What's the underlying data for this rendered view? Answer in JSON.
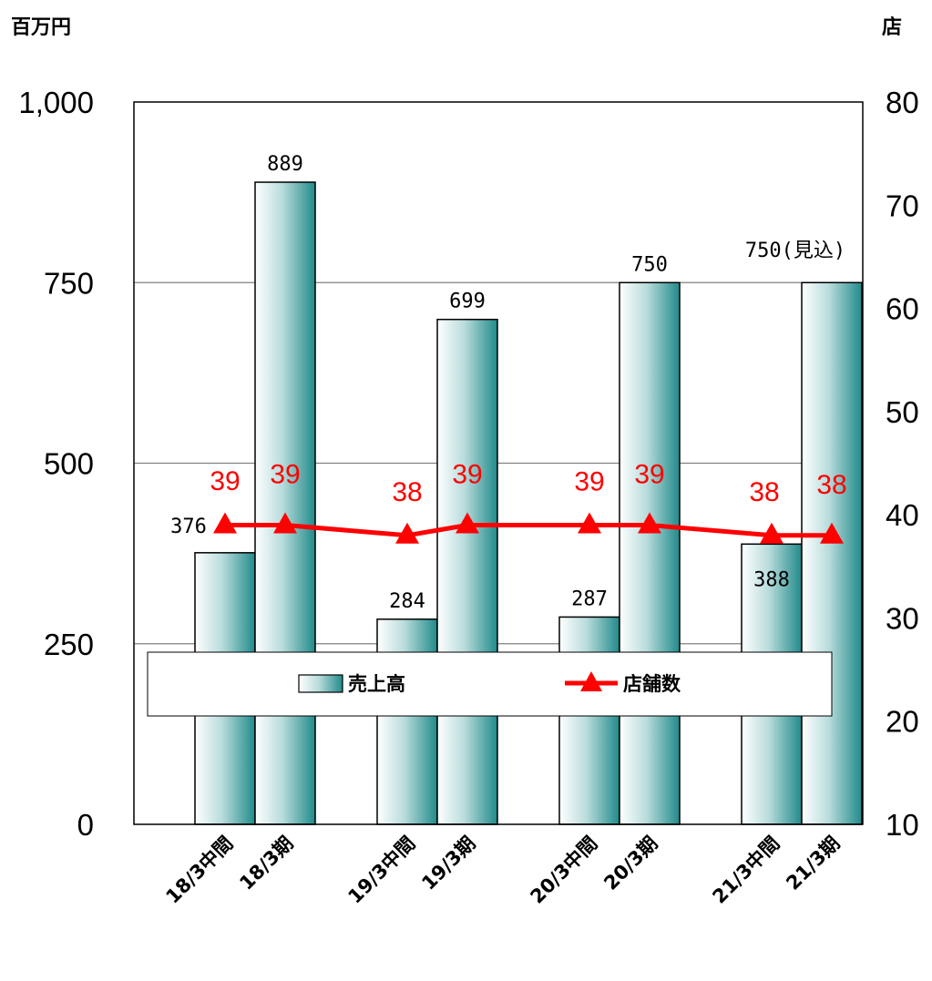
{
  "chart_data": {
    "type": "bar",
    "units": {
      "left": "百万円",
      "right": "店"
    },
    "categories": [
      "18/3中間",
      "18/3期",
      "19/3中間",
      "19/3期",
      "20/3中間",
      "20/3期",
      "21/3中間",
      "21/3期"
    ],
    "series": [
      {
        "name": "売上高",
        "type": "bar",
        "axis": "left",
        "values": [
          376,
          889,
          284,
          699,
          287,
          750,
          388,
          750
        ],
        "labels": [
          "376",
          "889",
          "284",
          "699",
          "287",
          "750",
          "388",
          "750(見込)"
        ]
      },
      {
        "name": "店舗数",
        "type": "line",
        "axis": "right",
        "values": [
          39,
          39,
          38,
          39,
          39,
          39,
          38,
          38
        ],
        "labels": [
          "39",
          "39",
          "38",
          "39",
          "39",
          "39",
          "38",
          "38"
        ]
      }
    ],
    "y_left": {
      "min": 0,
      "max": 1000,
      "ticks": [
        "0",
        "250",
        "500",
        "750",
        "1,000"
      ]
    },
    "y_right": {
      "min": 10,
      "max": 80,
      "ticks": [
        "10",
        "20",
        "30",
        "40",
        "50",
        "60",
        "70",
        "80"
      ]
    },
    "grid": true,
    "legend_position": "bottom",
    "colors": {
      "bar_light": "#ffffff",
      "bar_dark": "#218a8a",
      "line": "#ff0000"
    }
  }
}
